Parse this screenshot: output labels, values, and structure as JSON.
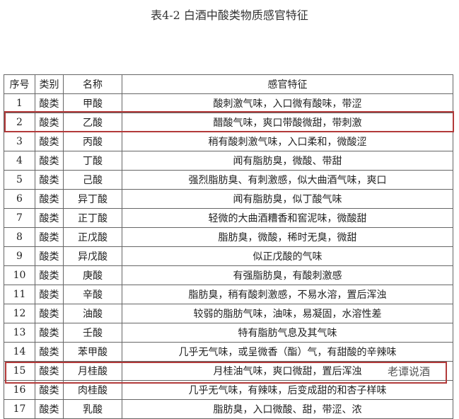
{
  "title": "表4-2 白酒中酸类物质感官特征",
  "headers": [
    "序号",
    "类别",
    "名称",
    "感官特征"
  ],
  "rows": [
    [
      "1",
      "酸类",
      "甲酸",
      "酸刺激气味，入口微有酸味，带涩"
    ],
    [
      "2",
      "酸类",
      "乙酸",
      "醋酸气味，爽口带酸微甜，带刺激"
    ],
    [
      "3",
      "酸类",
      "丙酸",
      "稍有酸刺激气味，入口柔和，微酸涩"
    ],
    [
      "4",
      "酸类",
      "丁酸",
      "闻有脂肪臭，微酸、带甜"
    ],
    [
      "5",
      "酸类",
      "己酸",
      "强烈脂肪臭、有刺激感，似大曲酒气味，爽口"
    ],
    [
      "6",
      "酸类",
      "异丁酸",
      "闻有脂肪臭，似丁酸气味"
    ],
    [
      "7",
      "酸类",
      "正丁酸",
      "轻微的大曲酒糟香和窖泥味，微酸甜"
    ],
    [
      "8",
      "酸类",
      "正戊酸",
      "脂肪臭，微酸，稀时无臭，微甜"
    ],
    [
      "9",
      "酸类",
      "异戊酸",
      "似正戊酸的气味"
    ],
    [
      "10",
      "酸类",
      "庚酸",
      "有强脂肪臭，有酸刺激感"
    ],
    [
      "11",
      "酸类",
      "辛酸",
      "脂肪臭，稍有酸刺激感，不易水溶，置后浑浊"
    ],
    [
      "12",
      "酸类",
      "油酸",
      "较弱的脂肪气味，油味，易凝固，水溶性差"
    ],
    [
      "13",
      "酸类",
      "壬酸",
      "特有脂肪气息及其气味"
    ],
    [
      "14",
      "酸类",
      "苯甲酸",
      "几乎无气味，或呈微香（酯）气，有甜酸的辛辣味"
    ],
    [
      "15",
      "酸类",
      "月桂酸",
      "月桂油气味，爽口微甜，置后浑浊"
    ],
    [
      "16",
      "酸类",
      "肉桂酸",
      "几乎无气味，有辣味，后变成甜的和杏子样味"
    ],
    [
      "17",
      "酸类",
      "乳酸",
      "脂肪臭，入口微酸、甜，带涩、浓"
    ]
  ],
  "watermark": "老谭说酒",
  "highlight_color": "#b23a3a"
}
